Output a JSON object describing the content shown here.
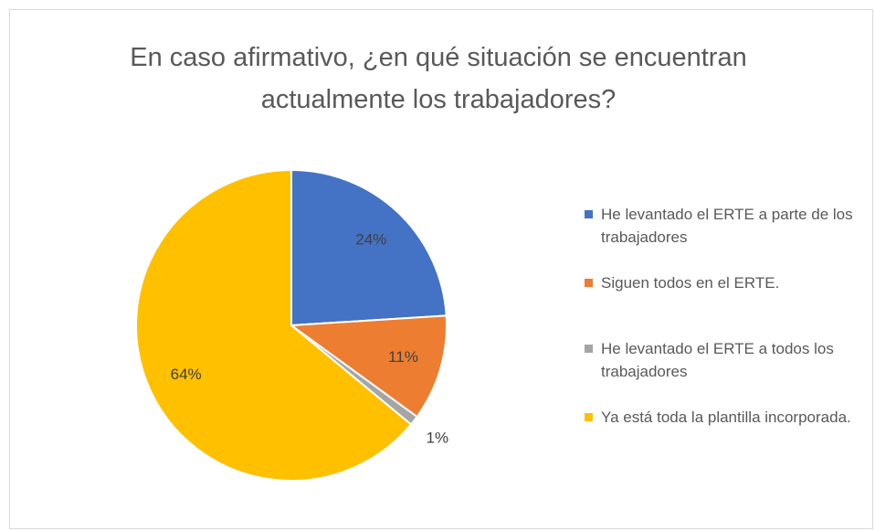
{
  "chart_data": {
    "type": "pie",
    "title": "En caso afirmativo, ¿en qué situación se encuentran actualmente los trabajadores?",
    "categories": [
      "He levantado el ERTE a parte de los trabajadores",
      "Siguen todos en el ERTE.",
      "He levantado el ERTE a todos los trabajadores",
      "Ya está toda la plantilla incorporada."
    ],
    "values": [
      24,
      11,
      1,
      64
    ],
    "value_labels": [
      "24%",
      "11%",
      "1%",
      "64%"
    ],
    "colors": [
      "#4472c4",
      "#ed7d31",
      "#a5a5a5",
      "#ffc000"
    ],
    "legend": "right"
  }
}
